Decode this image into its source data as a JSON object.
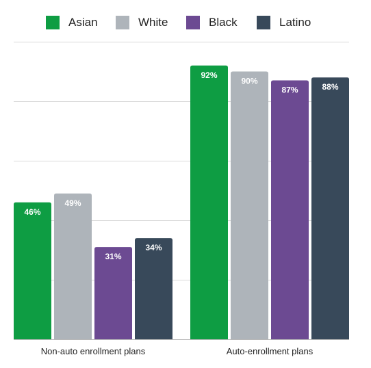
{
  "chart_data": {
    "type": "bar",
    "categories": [
      "Non-auto enrollment plans",
      "Auto-enrollment plans"
    ],
    "series": [
      {
        "name": "Asian",
        "values": [
          46,
          92
        ],
        "labels": [
          "46%",
          "92%"
        ],
        "color": "#0e9d43"
      },
      {
        "name": "White",
        "values": [
          49,
          90
        ],
        "labels": [
          "49%",
          "90%"
        ],
        "color": "#aeb4ba"
      },
      {
        "name": "Black",
        "values": [
          31,
          87
        ],
        "labels": [
          "31%",
          "87%"
        ],
        "color": "#6c4a92"
      },
      {
        "name": "Latino",
        "values": [
          34,
          88
        ],
        "labels": [
          "34%",
          "88%"
        ],
        "color": "#38495a"
      }
    ],
    "ylim": [
      0,
      100
    ],
    "grid": true,
    "legend_position": "top",
    "title": "",
    "xlabel": "",
    "ylabel": ""
  }
}
